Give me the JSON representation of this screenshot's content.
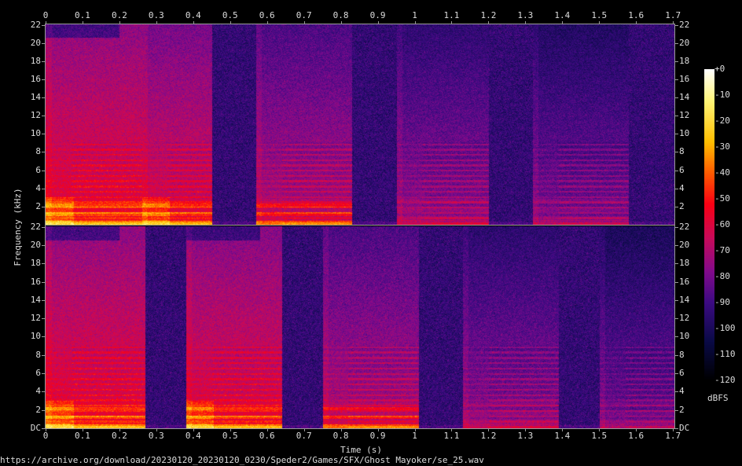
{
  "chart_data": {
    "type": "heatmap",
    "subtype": "spectrogram",
    "xlabel": "Time (s)",
    "ylabel": "Frequency (kHz)",
    "xlim": [
      0,
      1.706
    ],
    "ylim_khz": [
      0,
      22.05
    ],
    "x_ticks": [
      "0",
      "0.1",
      "0.2",
      "0.3",
      "0.4",
      "0.5",
      "0.6",
      "0.7",
      "0.8",
      "0.9",
      "1",
      "1.1",
      "1.2",
      "1.3",
      "1.4",
      "1.5",
      "1.6",
      "1.7"
    ],
    "y_ticks_top_channel": [
      "2",
      "4",
      "6",
      "8",
      "10",
      "12",
      "14",
      "16",
      "18",
      "20",
      "22"
    ],
    "y_ticks_bottom_channel": [
      "DC",
      "2",
      "4",
      "6",
      "8",
      "10",
      "12",
      "14",
      "16",
      "18",
      "20",
      "22"
    ],
    "colorbar": {
      "label": "dBFS",
      "range": [
        -120,
        0
      ],
      "ticks": [
        "+0",
        "-10",
        "-20",
        "-30",
        "-40",
        "-50",
        "-60",
        "-70",
        "-80",
        "-90",
        "-100",
        "-110",
        "-120"
      ]
    },
    "noise_floor_dbfs": -93,
    "channels": [
      {
        "segments": [
          {
            "start": 0.0,
            "end": 0.26,
            "level_dbfs": -56
          },
          {
            "start": 0.26,
            "end": 0.45,
            "level_dbfs": -60
          },
          {
            "start": 0.57,
            "end": 0.83,
            "level_dbfs": -68
          },
          {
            "start": 0.95,
            "end": 1.2,
            "level_dbfs": -74
          },
          {
            "start": 1.32,
            "end": 1.58,
            "level_dbfs": -78
          }
        ]
      },
      {
        "segments": [
          {
            "start": 0.0,
            "end": 0.27,
            "level_dbfs": -56
          },
          {
            "start": 0.38,
            "end": 0.64,
            "level_dbfs": -58
          },
          {
            "start": 0.75,
            "end": 1.01,
            "level_dbfs": -68
          },
          {
            "start": 1.13,
            "end": 1.39,
            "level_dbfs": -75
          },
          {
            "start": 1.5,
            "end": 1.706,
            "level_dbfs": -80
          }
        ]
      }
    ]
  },
  "footer": {
    "source": "https://archive.org/download/20230120_20230120_0230/Speder2/Games/SFX/Ghost Mayoker/se_25.wav"
  },
  "colors": {
    "background": "#000000",
    "axis": "#999999",
    "text": "#dddddd"
  }
}
